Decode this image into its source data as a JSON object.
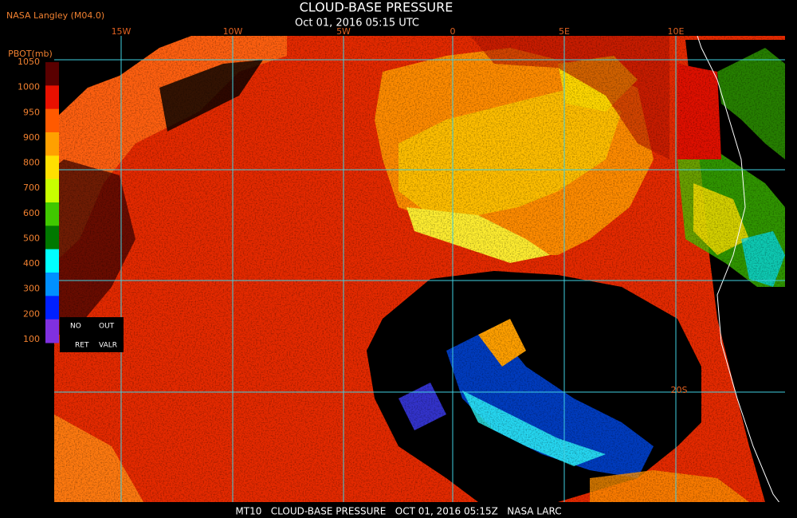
{
  "header": {
    "source": "NASA Langley (M04.0)",
    "title": "CLOUD-BASE PRESSURE",
    "datetime": "Oct 01, 2016 05:15 UTC"
  },
  "legend": {
    "title": "PBOT(mb)",
    "ticks": [
      1050,
      1000,
      950,
      900,
      800,
      700,
      600,
      500,
      400,
      300,
      200,
      100
    ],
    "colors": [
      "#5a0000",
      "#e81000",
      "#ff5a00",
      "#ffa000",
      "#ffe000",
      "#c8ff00",
      "#40c800",
      "#007800",
      "#00ffff",
      "#0090ff",
      "#0020ff",
      "#8030e0"
    ],
    "box": [
      "NO",
      "OUT",
      "RET",
      "VALR"
    ]
  },
  "map": {
    "longitudes": [
      "15W",
      "10W",
      "5W",
      "0",
      "5E",
      "10E"
    ],
    "latitudes": [
      "20S"
    ]
  },
  "footer": "MT10   CLOUD-BASE PRESSURE   OCT 01, 2016 05:15Z   NASA LARC"
}
